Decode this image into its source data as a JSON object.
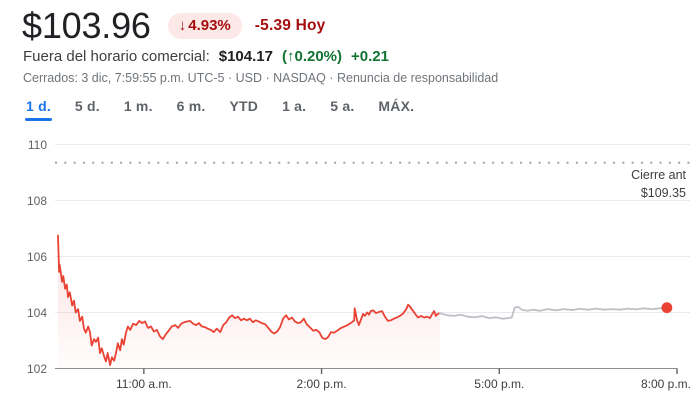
{
  "header": {
    "price": "$103.96",
    "badge": {
      "arrow": "↓",
      "pct": "4.93%"
    },
    "change_text": "-5.39 Hoy",
    "after_hours": {
      "label": "Fuera del horario comercial:",
      "price": "$104.17",
      "pct": "(↑0.20%)",
      "abs": "+0.21"
    },
    "status": "Cerrados: 3 dic, 7:59:55 p.m. UTC-5 · USD · NASDAQ",
    "status_separator": " · ",
    "disclaimer": "Renuncia de responsabilidad"
  },
  "tabs": [
    {
      "id": "1d",
      "label": "1 d.",
      "selected": true
    },
    {
      "id": "5d",
      "label": "5 d.",
      "selected": false
    },
    {
      "id": "1m",
      "label": "1 m.",
      "selected": false
    },
    {
      "id": "6m",
      "label": "6 m.",
      "selected": false
    },
    {
      "id": "ytd",
      "label": "YTD",
      "selected": false
    },
    {
      "id": "1a",
      "label": "1 a.",
      "selected": false
    },
    {
      "id": "5a",
      "label": "5 a.",
      "selected": false
    },
    {
      "id": "max",
      "label": "MÁX.",
      "selected": false
    }
  ],
  "colors": {
    "accent_blue": "#1a73e8",
    "negative_red": "#a50e0e",
    "badge_bg": "#fce8e6",
    "positive_green": "#137333",
    "line_red": "#ea4335",
    "line_gray": "#bdc1c6",
    "grid": "#e8eaed",
    "axis": "#8a8f94",
    "dotted": "#9aa0a6"
  },
  "chart_data": {
    "type": "line",
    "x_unit": "hours_of_day",
    "x_range": [
      9.5,
      20.0
    ],
    "y_range": [
      102,
      110
    ],
    "y_ticks": [
      {
        "v": 110,
        "label": "110"
      },
      {
        "v": 108,
        "label": "108"
      },
      {
        "v": 106,
        "label": "106"
      },
      {
        "v": 104,
        "label": "104"
      },
      {
        "v": 102,
        "label": "102"
      }
    ],
    "x_ticks": [
      {
        "t": 11,
        "label": "11:00 a.m."
      },
      {
        "t": 14,
        "label": "2:00 p.m."
      },
      {
        "t": 17,
        "label": "5:00 p.m."
      },
      {
        "t": 20,
        "label": "8:00 p.m."
      }
    ],
    "grid": true,
    "legend": false,
    "prev_close": {
      "value": 109.35,
      "label": "Cierre ant",
      "display": "$109.35"
    },
    "series": [
      {
        "name": "market_hours",
        "color": "#ea4335",
        "fill": true,
        "points": [
          [
            9.55,
            106.75
          ],
          [
            9.57,
            105.45
          ],
          [
            9.58,
            105.7
          ],
          [
            9.62,
            105.1
          ],
          [
            9.64,
            105.3
          ],
          [
            9.67,
            104.85
          ],
          [
            9.7,
            105.0
          ],
          [
            9.72,
            104.55
          ],
          [
            9.75,
            104.72
          ],
          [
            9.79,
            104.25
          ],
          [
            9.82,
            104.42
          ],
          [
            9.85,
            104.0
          ],
          [
            9.89,
            104.12
          ],
          [
            9.92,
            103.7
          ],
          [
            9.96,
            103.85
          ],
          [
            9.99,
            103.42
          ],
          [
            10.02,
            103.28
          ],
          [
            10.06,
            103.5
          ],
          [
            10.09,
            103.3
          ],
          [
            10.12,
            102.82
          ],
          [
            10.16,
            103.05
          ],
          [
            10.19,
            102.95
          ],
          [
            10.23,
            103.1
          ],
          [
            10.26,
            102.55
          ],
          [
            10.29,
            102.72
          ],
          [
            10.33,
            102.42
          ],
          [
            10.36,
            102.25
          ],
          [
            10.39,
            102.55
          ],
          [
            10.43,
            102.12
          ],
          [
            10.46,
            102.4
          ],
          [
            10.5,
            102.28
          ],
          [
            10.53,
            102.55
          ],
          [
            10.56,
            102.9
          ],
          [
            10.6,
            102.65
          ],
          [
            10.63,
            103.05
          ],
          [
            10.66,
            102.85
          ],
          [
            10.7,
            103.3
          ],
          [
            10.73,
            103.5
          ],
          [
            10.77,
            103.38
          ],
          [
            10.82,
            103.6
          ],
          [
            10.87,
            103.55
          ],
          [
            10.92,
            103.7
          ],
          [
            10.97,
            103.62
          ],
          [
            11.02,
            103.68
          ],
          [
            11.07,
            103.45
          ],
          [
            11.12,
            103.5
          ],
          [
            11.17,
            103.32
          ],
          [
            11.22,
            103.38
          ],
          [
            11.27,
            103.15
          ],
          [
            11.32,
            103.05
          ],
          [
            11.37,
            103.22
          ],
          [
            11.42,
            103.35
          ],
          [
            11.47,
            103.5
          ],
          [
            11.53,
            103.55
          ],
          [
            11.58,
            103.45
          ],
          [
            11.63,
            103.6
          ],
          [
            11.68,
            103.65
          ],
          [
            11.73,
            103.68
          ],
          [
            11.78,
            103.7
          ],
          [
            11.83,
            103.6
          ],
          [
            11.88,
            103.55
          ],
          [
            11.93,
            103.62
          ],
          [
            11.98,
            103.5
          ],
          [
            12.03,
            103.48
          ],
          [
            12.08,
            103.42
          ],
          [
            12.13,
            103.38
          ],
          [
            12.18,
            103.3
          ],
          [
            12.23,
            103.42
          ],
          [
            12.29,
            103.3
          ],
          [
            12.34,
            103.55
          ],
          [
            12.39,
            103.65
          ],
          [
            12.44,
            103.82
          ],
          [
            12.49,
            103.9
          ],
          [
            12.54,
            103.8
          ],
          [
            12.59,
            103.85
          ],
          [
            12.64,
            103.72
          ],
          [
            12.69,
            103.78
          ],
          [
            12.74,
            103.72
          ],
          [
            12.79,
            103.78
          ],
          [
            12.84,
            103.65
          ],
          [
            12.89,
            103.72
          ],
          [
            12.94,
            103.68
          ],
          [
            12.99,
            103.62
          ],
          [
            13.05,
            103.58
          ],
          [
            13.1,
            103.45
          ],
          [
            13.15,
            103.32
          ],
          [
            13.2,
            103.25
          ],
          [
            13.25,
            103.32
          ],
          [
            13.3,
            103.48
          ],
          [
            13.35,
            103.78
          ],
          [
            13.4,
            103.9
          ],
          [
            13.45,
            103.75
          ],
          [
            13.5,
            103.82
          ],
          [
            13.55,
            103.68
          ],
          [
            13.6,
            103.62
          ],
          [
            13.65,
            103.65
          ],
          [
            13.7,
            103.78
          ],
          [
            13.75,
            103.58
          ],
          [
            13.8,
            103.48
          ],
          [
            13.86,
            103.35
          ],
          [
            13.91,
            103.38
          ],
          [
            13.96,
            103.3
          ],
          [
            14.01,
            103.1
          ],
          [
            14.06,
            103.05
          ],
          [
            14.11,
            103.12
          ],
          [
            14.16,
            103.3
          ],
          [
            14.21,
            103.28
          ],
          [
            14.26,
            103.35
          ],
          [
            14.31,
            103.42
          ],
          [
            14.36,
            103.48
          ],
          [
            14.41,
            103.52
          ],
          [
            14.46,
            103.58
          ],
          [
            14.51,
            103.65
          ],
          [
            14.55,
            103.72
          ],
          [
            14.56,
            104.15
          ],
          [
            14.6,
            103.72
          ],
          [
            14.63,
            103.55
          ],
          [
            14.66,
            103.72
          ],
          [
            14.7,
            103.95
          ],
          [
            14.73,
            103.88
          ],
          [
            14.77,
            104.0
          ],
          [
            14.8,
            103.92
          ],
          [
            14.83,
            104.05
          ],
          [
            14.87,
            104.08
          ],
          [
            14.92,
            103.98
          ],
          [
            14.97,
            104.02
          ],
          [
            15.02,
            104.05
          ],
          [
            15.07,
            103.85
          ],
          [
            15.12,
            103.7
          ],
          [
            15.17,
            103.72
          ],
          [
            15.22,
            103.78
          ],
          [
            15.27,
            103.82
          ],
          [
            15.32,
            103.88
          ],
          [
            15.37,
            103.95
          ],
          [
            15.43,
            104.12
          ],
          [
            15.46,
            104.28
          ],
          [
            15.49,
            104.22
          ],
          [
            15.53,
            104.1
          ],
          [
            15.58,
            103.95
          ],
          [
            15.63,
            103.82
          ],
          [
            15.68,
            103.88
          ],
          [
            15.73,
            103.82
          ],
          [
            15.78,
            103.85
          ],
          [
            15.83,
            103.8
          ],
          [
            15.86,
            103.92
          ],
          [
            15.9,
            104.05
          ],
          [
            15.93,
            103.88
          ],
          [
            15.96,
            103.95
          ],
          [
            16.0,
            103.97
          ]
        ]
      },
      {
        "name": "after_hours",
        "color": "#bdc1c6",
        "fill": false,
        "points": [
          [
            16.0,
            103.97
          ],
          [
            16.12,
            103.9
          ],
          [
            16.24,
            103.88
          ],
          [
            16.35,
            103.92
          ],
          [
            16.47,
            103.85
          ],
          [
            16.59,
            103.83
          ],
          [
            16.71,
            103.87
          ],
          [
            16.83,
            103.8
          ],
          [
            16.94,
            103.83
          ],
          [
            17.06,
            103.78
          ],
          [
            17.15,
            103.8
          ],
          [
            17.21,
            103.82
          ],
          [
            17.26,
            104.18
          ],
          [
            17.32,
            104.2
          ],
          [
            17.38,
            104.1
          ],
          [
            17.47,
            104.06
          ],
          [
            17.57,
            104.1
          ],
          [
            17.69,
            104.06
          ],
          [
            17.82,
            104.12
          ],
          [
            17.96,
            104.08
          ],
          [
            18.09,
            104.12
          ],
          [
            18.23,
            104.09
          ],
          [
            18.36,
            104.13
          ],
          [
            18.5,
            104.1
          ],
          [
            18.63,
            104.14
          ],
          [
            18.77,
            104.1
          ],
          [
            18.9,
            104.12
          ],
          [
            19.04,
            104.1
          ],
          [
            19.17,
            104.14
          ],
          [
            19.31,
            104.11
          ],
          [
            19.44,
            104.15
          ],
          [
            19.58,
            104.12
          ],
          [
            19.71,
            104.15
          ],
          [
            19.83,
            104.17
          ]
        ]
      }
    ],
    "end_dot": {
      "t": 19.83,
      "p": 104.17,
      "color": "#ea4335"
    }
  }
}
